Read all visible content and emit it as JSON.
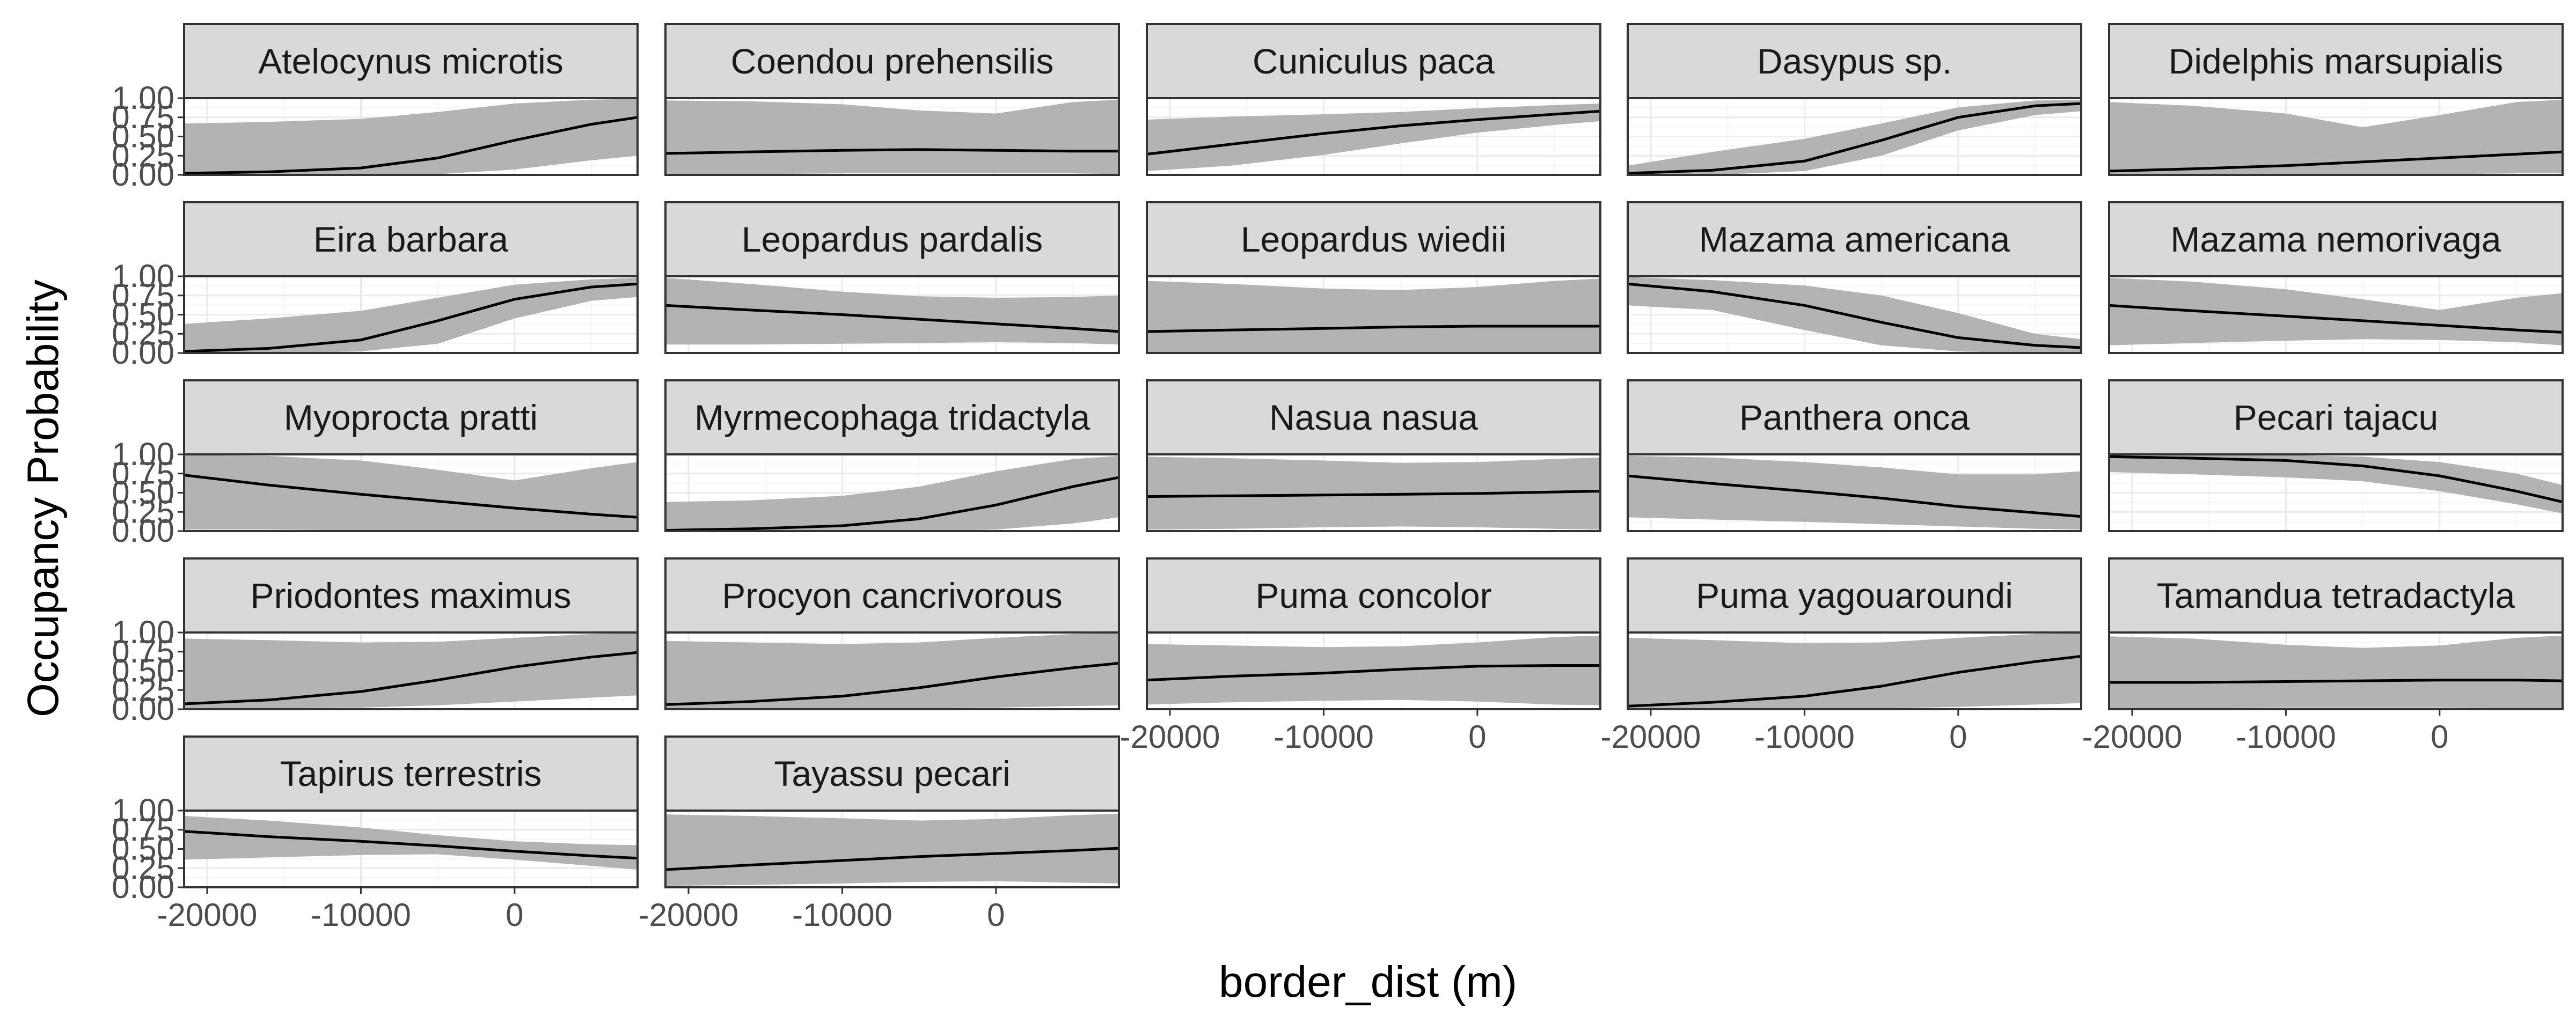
{
  "chart_data": {
    "type": "line",
    "facet": "wrap",
    "ncol": 5,
    "xlabel": "border_dist (m)",
    "ylabel": "Occupancy Probability",
    "xlim": [
      -21500,
      8000
    ],
    "ylim": [
      0,
      1
    ],
    "xticks": [
      -20000,
      -10000,
      0
    ],
    "xtick_labels": [
      "-20000",
      "-10000",
      "0"
    ],
    "yticks": [
      0,
      0.25,
      0.5,
      0.75,
      1
    ],
    "ytick_labels": [
      "0.00",
      "0.25",
      "0.50",
      "0.75",
      "1.00"
    ],
    "grid": true,
    "colors": {
      "line": "#000000",
      "ribbon": "#b3b3b3",
      "strip_fill": "#d9d9d9",
      "strip_border": "#333333",
      "panel_border": "#333333",
      "grid_major": "#ebebeb",
      "grid_minor": "#f5f5f5"
    },
    "x": [
      -21500,
      -16000,
      -10000,
      -5000,
      0,
      5000,
      8000
    ],
    "panels": [
      {
        "name": "Atelocynus microtis",
        "mean": [
          0.02,
          0.04,
          0.09,
          0.22,
          0.45,
          0.66,
          0.75
        ],
        "lower": [
          0.0,
          0.0,
          0.0,
          0.01,
          0.07,
          0.19,
          0.25
        ],
        "upper": [
          0.67,
          0.69,
          0.73,
          0.82,
          0.93,
          0.98,
          0.99
        ]
      },
      {
        "name": "Coendou prehensilis",
        "mean": [
          0.28,
          0.3,
          0.32,
          0.33,
          0.32,
          0.31,
          0.31
        ],
        "lower": [
          0.01,
          0.01,
          0.02,
          0.02,
          0.02,
          0.02,
          0.01
        ],
        "upper": [
          0.97,
          0.96,
          0.92,
          0.84,
          0.8,
          0.95,
          0.98
        ]
      },
      {
        "name": "Cuniculus paca",
        "mean": [
          0.27,
          0.4,
          0.54,
          0.64,
          0.72,
          0.79,
          0.83
        ],
        "lower": [
          0.05,
          0.12,
          0.26,
          0.41,
          0.55,
          0.65,
          0.7
        ],
        "upper": [
          0.72,
          0.76,
          0.79,
          0.82,
          0.87,
          0.91,
          0.93
        ]
      },
      {
        "name": "Dasypus sp.",
        "mean": [
          0.02,
          0.06,
          0.18,
          0.45,
          0.75,
          0.9,
          0.93
        ],
        "lower": [
          0.0,
          0.0,
          0.05,
          0.25,
          0.58,
          0.78,
          0.83
        ],
        "upper": [
          0.12,
          0.3,
          0.47,
          0.67,
          0.88,
          0.97,
          0.98
        ]
      },
      {
        "name": "Didelphis marsupialis",
        "mean": [
          0.05,
          0.08,
          0.12,
          0.17,
          0.22,
          0.27,
          0.3
        ],
        "lower": [
          0.0,
          0.0,
          0.0,
          0.01,
          0.01,
          0.02,
          0.02
        ],
        "upper": [
          0.95,
          0.9,
          0.8,
          0.62,
          0.78,
          0.95,
          0.98
        ]
      },
      {
        "name": "Eira barbara",
        "mean": [
          0.02,
          0.06,
          0.17,
          0.42,
          0.7,
          0.86,
          0.9
        ],
        "lower": [
          0.0,
          0.0,
          0.02,
          0.12,
          0.45,
          0.68,
          0.73
        ],
        "upper": [
          0.38,
          0.45,
          0.55,
          0.72,
          0.89,
          0.96,
          0.98
        ]
      },
      {
        "name": "Leopardus pardalis",
        "mean": [
          0.62,
          0.56,
          0.5,
          0.44,
          0.38,
          0.32,
          0.28
        ],
        "lower": [
          0.11,
          0.11,
          0.12,
          0.13,
          0.14,
          0.13,
          0.11
        ],
        "upper": [
          0.98,
          0.9,
          0.8,
          0.74,
          0.72,
          0.73,
          0.75
        ]
      },
      {
        "name": "Leopardus wiedii",
        "mean": [
          0.28,
          0.3,
          0.32,
          0.34,
          0.35,
          0.35,
          0.35
        ],
        "lower": [
          0.0,
          0.01,
          0.01,
          0.01,
          0.01,
          0.01,
          0.0
        ],
        "upper": [
          0.94,
          0.9,
          0.84,
          0.82,
          0.86,
          0.94,
          0.97
        ]
      },
      {
        "name": "Mazama americana",
        "mean": [
          0.9,
          0.8,
          0.62,
          0.4,
          0.2,
          0.1,
          0.07
        ],
        "lower": [
          0.62,
          0.56,
          0.3,
          0.1,
          0.02,
          0.0,
          0.0
        ],
        "upper": [
          0.99,
          0.95,
          0.88,
          0.75,
          0.52,
          0.25,
          0.18
        ]
      },
      {
        "name": "Mazama nemorivaga",
        "mean": [
          0.62,
          0.55,
          0.48,
          0.42,
          0.36,
          0.3,
          0.27
        ],
        "lower": [
          0.1,
          0.13,
          0.16,
          0.18,
          0.17,
          0.14,
          0.1
        ],
        "upper": [
          0.98,
          0.93,
          0.83,
          0.7,
          0.56,
          0.72,
          0.78
        ]
      },
      {
        "name": "Myoprocta pratti",
        "mean": [
          0.73,
          0.6,
          0.48,
          0.39,
          0.3,
          0.22,
          0.18
        ],
        "lower": [
          0.02,
          0.02,
          0.01,
          0.01,
          0.01,
          0.01,
          0.01
        ],
        "upper": [
          0.99,
          0.98,
          0.92,
          0.8,
          0.66,
          0.82,
          0.9
        ]
      },
      {
        "name": "Myrmecophaga tridactyla",
        "mean": [
          0.01,
          0.03,
          0.07,
          0.16,
          0.34,
          0.58,
          0.7
        ],
        "lower": [
          0.0,
          0.0,
          0.0,
          0.0,
          0.02,
          0.1,
          0.18
        ],
        "upper": [
          0.38,
          0.4,
          0.46,
          0.58,
          0.78,
          0.94,
          0.98
        ]
      },
      {
        "name": "Nasua nasua",
        "mean": [
          0.45,
          0.46,
          0.47,
          0.48,
          0.49,
          0.51,
          0.52
        ],
        "lower": [
          0.02,
          0.03,
          0.05,
          0.06,
          0.05,
          0.03,
          0.02
        ],
        "upper": [
          0.97,
          0.95,
          0.92,
          0.89,
          0.9,
          0.94,
          0.96
        ]
      },
      {
        "name": "Panthera onca",
        "mean": [
          0.72,
          0.62,
          0.52,
          0.43,
          0.32,
          0.24,
          0.19
        ],
        "lower": [
          0.18,
          0.15,
          0.12,
          0.09,
          0.06,
          0.03,
          0.02
        ],
        "upper": [
          0.98,
          0.96,
          0.9,
          0.83,
          0.74,
          0.74,
          0.78
        ]
      },
      {
        "name": "Pecari tajacu",
        "mean": [
          0.97,
          0.95,
          0.92,
          0.85,
          0.72,
          0.52,
          0.38
        ],
        "lower": [
          0.77,
          0.74,
          0.7,
          0.65,
          0.52,
          0.35,
          0.23
        ],
        "upper": [
          0.99,
          0.99,
          0.99,
          0.97,
          0.9,
          0.75,
          0.6
        ]
      },
      {
        "name": "Priodontes maximus",
        "mean": [
          0.07,
          0.12,
          0.23,
          0.38,
          0.55,
          0.68,
          0.74
        ],
        "lower": [
          0.0,
          0.01,
          0.02,
          0.05,
          0.1,
          0.15,
          0.18
        ],
        "upper": [
          0.92,
          0.9,
          0.87,
          0.88,
          0.93,
          0.98,
          0.99
        ]
      },
      {
        "name": "Procyon cancrivorous",
        "mean": [
          0.06,
          0.1,
          0.17,
          0.28,
          0.42,
          0.54,
          0.6
        ],
        "lower": [
          0.0,
          0.0,
          0.01,
          0.01,
          0.02,
          0.04,
          0.05
        ],
        "upper": [
          0.89,
          0.87,
          0.85,
          0.87,
          0.93,
          0.98,
          0.99
        ]
      },
      {
        "name": "Puma concolor",
        "mean": [
          0.38,
          0.43,
          0.47,
          0.52,
          0.56,
          0.57,
          0.57
        ],
        "lower": [
          0.06,
          0.09,
          0.11,
          0.12,
          0.1,
          0.06,
          0.05
        ],
        "upper": [
          0.85,
          0.83,
          0.81,
          0.82,
          0.87,
          0.94,
          0.96
        ]
      },
      {
        "name": "Puma yagouaroundi",
        "mean": [
          0.04,
          0.09,
          0.17,
          0.3,
          0.48,
          0.62,
          0.69
        ],
        "lower": [
          0.0,
          0.0,
          0.01,
          0.01,
          0.03,
          0.06,
          0.08
        ],
        "upper": [
          0.93,
          0.9,
          0.86,
          0.87,
          0.93,
          0.98,
          0.99
        ]
      },
      {
        "name": "Tamandua tetradactyla",
        "mean": [
          0.35,
          0.35,
          0.36,
          0.37,
          0.38,
          0.38,
          0.37
        ],
        "lower": [
          0.01,
          0.01,
          0.02,
          0.02,
          0.02,
          0.01,
          0.01
        ],
        "upper": [
          0.95,
          0.92,
          0.84,
          0.8,
          0.83,
          0.93,
          0.96
        ]
      },
      {
        "name": "Tapirus terrestris",
        "mean": [
          0.73,
          0.66,
          0.6,
          0.54,
          0.47,
          0.41,
          0.38
        ],
        "lower": [
          0.36,
          0.39,
          0.42,
          0.43,
          0.36,
          0.28,
          0.23
        ],
        "upper": [
          0.93,
          0.87,
          0.78,
          0.68,
          0.6,
          0.56,
          0.55
        ]
      },
      {
        "name": "Tayassu pecari",
        "mean": [
          0.23,
          0.29,
          0.35,
          0.4,
          0.44,
          0.48,
          0.51
        ],
        "lower": [
          0.02,
          0.03,
          0.05,
          0.07,
          0.08,
          0.06,
          0.05
        ],
        "upper": [
          0.95,
          0.93,
          0.9,
          0.87,
          0.89,
          0.94,
          0.96
        ]
      }
    ]
  }
}
